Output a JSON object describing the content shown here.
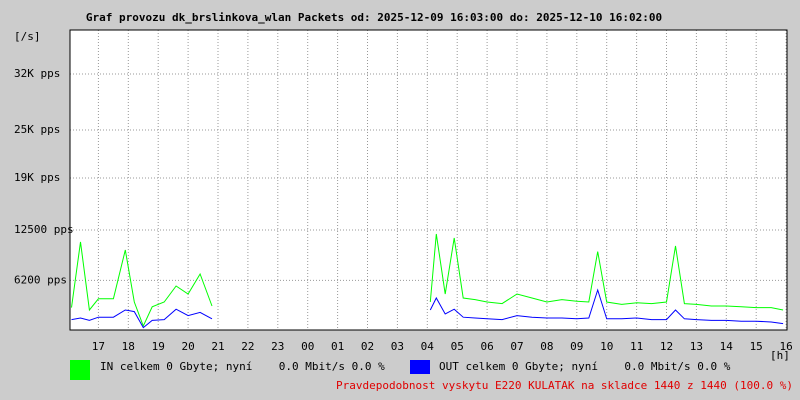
{
  "chart_data": {
    "type": "line",
    "title": "Graf provozu dk_brslinkova_wlan Packets od: 2025-12-09 16:03:00 do: 2025-12-10 16:02:00",
    "y_axis_label": "[/s]",
    "x_axis_label": "[h]",
    "x": [
      16.1,
      16.4,
      16.7,
      17.0,
      17.5,
      17.9,
      18.2,
      18.5,
      18.8,
      19.2,
      19.6,
      20.0,
      20.4,
      20.8,
      24.0,
      28.1,
      28.3,
      28.6,
      28.9,
      29.2,
      29.6,
      30.0,
      30.5,
      31.0,
      31.5,
      32.0,
      32.5,
      33.0,
      33.4,
      33.7,
      34.0,
      34.5,
      35.0,
      35.5,
      36.0,
      36.3,
      36.6,
      37.0,
      37.5,
      38.0,
      38.5,
      39.0,
      39.5,
      39.9
    ],
    "series": [
      {
        "name": "IN celkem 0 Gbyte; nyní    0.0 Mbit/s 0.0 %",
        "color": "#00ff00",
        "values": [
          2800,
          11000,
          2500,
          3900,
          3900,
          10000,
          3500,
          500,
          2900,
          3500,
          5500,
          4500,
          7000,
          3000,
          null,
          3500,
          12000,
          4500,
          11500,
          4000,
          3800,
          3500,
          3300,
          4500,
          4000,
          3500,
          3800,
          3600,
          3500,
          9800,
          3500,
          3200,
          3400,
          3300,
          3500,
          10500,
          3300,
          3200,
          3000,
          3000,
          2900,
          2800,
          2800,
          2500
        ]
      },
      {
        "name": "OUT celkem 0 Gbyte; nyní    0.0 Mbit/s 0.0 %",
        "color": "#0000ff",
        "values": [
          1300,
          1500,
          1200,
          1600,
          1600,
          2500,
          2300,
          300,
          1200,
          1300,
          2600,
          1800,
          2200,
          1400,
          null,
          2500,
          4000,
          2000,
          2600,
          1600,
          1500,
          1400,
          1300,
          1800,
          1600,
          1500,
          1500,
          1400,
          1500,
          5000,
          1400,
          1400,
          1500,
          1300,
          1300,
          2500,
          1400,
          1300,
          1200,
          1200,
          1100,
          1100,
          1000,
          800
        ]
      }
    ],
    "xlim": [
      16.05,
      40.03
    ],
    "xticks": [
      17,
      18,
      19,
      20,
      21,
      22,
      23,
      {
        "value": 24,
        "label": "00"
      },
      {
        "value": 25,
        "label": "01"
      },
      {
        "value": 26,
        "label": "02"
      },
      {
        "value": 27,
        "label": "03"
      },
      {
        "value": 28,
        "label": "04"
      },
      {
        "value": 29,
        "label": "05"
      },
      {
        "value": 30,
        "label": "06"
      },
      {
        "value": 31,
        "label": "07"
      },
      {
        "value": 32,
        "label": "08"
      },
      {
        "value": 33,
        "label": "09"
      },
      {
        "value": 34,
        "label": "10"
      },
      {
        "value": 35,
        "label": "11"
      },
      {
        "value": 36,
        "label": "12"
      },
      {
        "value": 37,
        "label": "13"
      },
      {
        "value": 38,
        "label": "14"
      },
      {
        "value": 39,
        "label": "15"
      },
      {
        "value": 40,
        "label": "16"
      }
    ],
    "ylim": [
      0,
      37500
    ],
    "yticks": [
      {
        "value": 6200,
        "label": "6200 pps"
      },
      {
        "value": 12500,
        "label": "12500 pps"
      },
      {
        "value": 19000,
        "label": "19K pps"
      },
      {
        "value": 25000,
        "label": "25K pps"
      },
      {
        "value": 32000,
        "label": "32K pps"
      }
    ],
    "grid": true,
    "note": "Pravdepodobnost vyskytu E220 KULATAK na skladce 1440 z 1440 (100.0 %)"
  }
}
